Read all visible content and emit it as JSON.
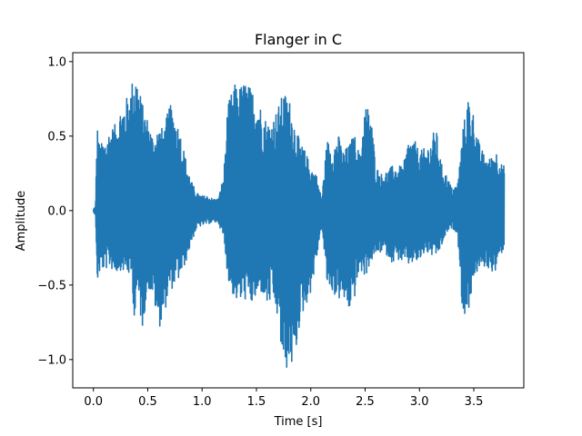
{
  "chart_data": {
    "type": "line",
    "title": "Flanger in C",
    "xlabel": "Time [s]",
    "ylabel": "Amplitude",
    "xlim": [
      -0.19,
      3.96
    ],
    "ylim": [
      -1.19,
      1.06
    ],
    "grid": false,
    "legend": "none",
    "x_ticks": [
      {
        "value": 0.0,
        "label": "0.0"
      },
      {
        "value": 0.5,
        "label": "0.5"
      },
      {
        "value": 1.0,
        "label": "1.0"
      },
      {
        "value": 1.5,
        "label": "1.5"
      },
      {
        "value": 2.0,
        "label": "2.0"
      },
      {
        "value": 2.5,
        "label": "2.5"
      },
      {
        "value": 3.0,
        "label": "3.0"
      },
      {
        "value": 3.5,
        "label": "3.5"
      }
    ],
    "y_ticks": [
      {
        "value": -1.0,
        "label": "−1.0"
      },
      {
        "value": -0.5,
        "label": "−0.5"
      },
      {
        "value": 0.0,
        "label": "0.0"
      },
      {
        "value": 0.5,
        "label": "0.5"
      },
      {
        "value": 1.0,
        "label": "1.0"
      }
    ],
    "series": [
      {
        "color": "#1f77b4",
        "envelope": {
          "t": [
            0.0,
            0.02,
            0.03,
            0.04,
            0.05,
            0.07,
            0.1,
            0.15,
            0.2,
            0.25,
            0.3,
            0.35,
            0.38,
            0.4,
            0.45,
            0.5,
            0.55,
            0.6,
            0.65,
            0.7,
            0.75,
            0.8,
            0.85,
            0.9,
            0.95,
            1.0,
            1.05,
            1.1,
            1.15,
            1.2,
            1.23,
            1.25,
            1.3,
            1.35,
            1.4,
            1.45,
            1.5,
            1.55,
            1.6,
            1.65,
            1.7,
            1.75,
            1.8,
            1.85,
            1.9,
            1.95,
            2.0,
            2.05,
            2.1,
            2.15,
            2.2,
            2.25,
            2.3,
            2.35,
            2.4,
            2.45,
            2.5,
            2.55,
            2.6,
            2.65,
            2.7,
            2.75,
            2.8,
            2.85,
            2.9,
            2.95,
            3.0,
            3.05,
            3.1,
            3.15,
            3.2,
            3.25,
            3.3,
            3.35,
            3.4,
            3.45,
            3.5,
            3.55,
            3.6,
            3.65,
            3.7,
            3.75,
            3.78
          ],
          "upper": [
            0.01,
            0.03,
            0.45,
            0.6,
            0.46,
            0.45,
            0.47,
            0.55,
            0.58,
            0.7,
            0.75,
            0.85,
            0.97,
            0.92,
            0.72,
            0.62,
            0.5,
            0.57,
            0.55,
            0.72,
            0.65,
            0.53,
            0.35,
            0.2,
            0.12,
            0.1,
            0.1,
            0.08,
            0.08,
            0.25,
            0.65,
            0.75,
            0.85,
            0.84,
            0.88,
            0.82,
            0.8,
            0.68,
            0.6,
            0.62,
            0.7,
            0.8,
            0.76,
            0.6,
            0.46,
            0.4,
            0.3,
            0.25,
            0.08,
            0.48,
            0.42,
            0.52,
            0.4,
            0.44,
            0.52,
            0.38,
            0.72,
            0.68,
            0.3,
            0.25,
            0.27,
            0.3,
            0.3,
            0.3,
            0.48,
            0.48,
            0.4,
            0.42,
            0.46,
            0.57,
            0.32,
            0.24,
            0.15,
            0.18,
            0.55,
            0.78,
            0.65,
            0.45,
            0.37,
            0.35,
            0.42,
            0.32,
            0.3
          ],
          "lower": [
            -0.01,
            -0.03,
            -0.45,
            -0.48,
            -0.44,
            -0.4,
            -0.4,
            -0.38,
            -0.42,
            -0.4,
            -0.42,
            -0.45,
            -0.75,
            -0.55,
            -0.8,
            -0.52,
            -0.58,
            -0.8,
            -0.7,
            -0.55,
            -0.5,
            -0.45,
            -0.35,
            -0.22,
            -0.12,
            -0.1,
            -0.09,
            -0.08,
            -0.08,
            -0.2,
            -0.4,
            -0.5,
            -0.6,
            -0.62,
            -0.6,
            -0.64,
            -0.6,
            -0.55,
            -0.65,
            -0.6,
            -0.75,
            -1.1,
            -1.05,
            -1.05,
            -0.75,
            -0.65,
            -0.55,
            -0.35,
            -0.1,
            -0.5,
            -0.55,
            -0.6,
            -0.6,
            -0.68,
            -0.6,
            -0.4,
            -0.45,
            -0.35,
            -0.3,
            -0.28,
            -0.3,
            -0.35,
            -0.33,
            -0.35,
            -0.37,
            -0.35,
            -0.35,
            -0.28,
            -0.3,
            -0.32,
            -0.25,
            -0.15,
            -0.12,
            -0.15,
            -0.73,
            -0.68,
            -0.45,
            -0.4,
            -0.38,
            -0.4,
            -0.42,
            -0.3,
            -0.25
          ]
        }
      }
    ]
  }
}
